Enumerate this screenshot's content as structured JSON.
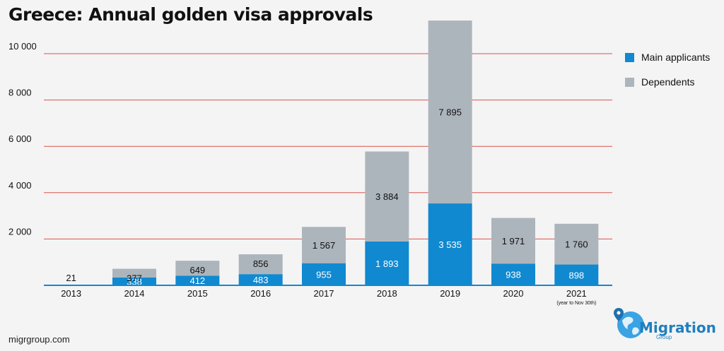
{
  "title": "Greece: Annual golden visa approvals",
  "source": "migrgroup.com",
  "logo": {
    "name": "Migration",
    "sub": "Group"
  },
  "colors": {
    "main": "#1089d0",
    "dependents": "#adb5bc",
    "grid": "#d9534f",
    "baseline": "#1089d0"
  },
  "chart_data": {
    "type": "bar",
    "stacked": true,
    "categories": [
      "2013",
      "2014",
      "2015",
      "2016",
      "2017",
      "2018",
      "2019",
      "2020",
      "2021"
    ],
    "category_notes": [
      "",
      "",
      "",
      "",
      "",
      "",
      "",
      "",
      "(year to Nov 30th)"
    ],
    "series": [
      {
        "name": "Main applicants",
        "values": [
          21,
          338,
          412,
          483,
          955,
          1893,
          3535,
          938,
          898
        ],
        "labels": [
          "21",
          "338",
          "412",
          "483",
          "955",
          "1 893",
          "3 535",
          "938",
          "898"
        ]
      },
      {
        "name": "Dependents",
        "values": [
          0,
          377,
          649,
          856,
          1567,
          3884,
          7895,
          1971,
          1760
        ],
        "labels": [
          "",
          "377",
          "649",
          "856",
          "1 567",
          "3 884",
          "7 895",
          "1 971",
          "1 760"
        ]
      }
    ],
    "yticks": [
      2000,
      4000,
      6000,
      8000,
      10000
    ],
    "ytick_labels": [
      "2 000",
      "4 000",
      "6 000",
      "8 000",
      "10 000"
    ],
    "ylim": [
      0,
      11000
    ],
    "grid": true,
    "legend_position": "right"
  }
}
